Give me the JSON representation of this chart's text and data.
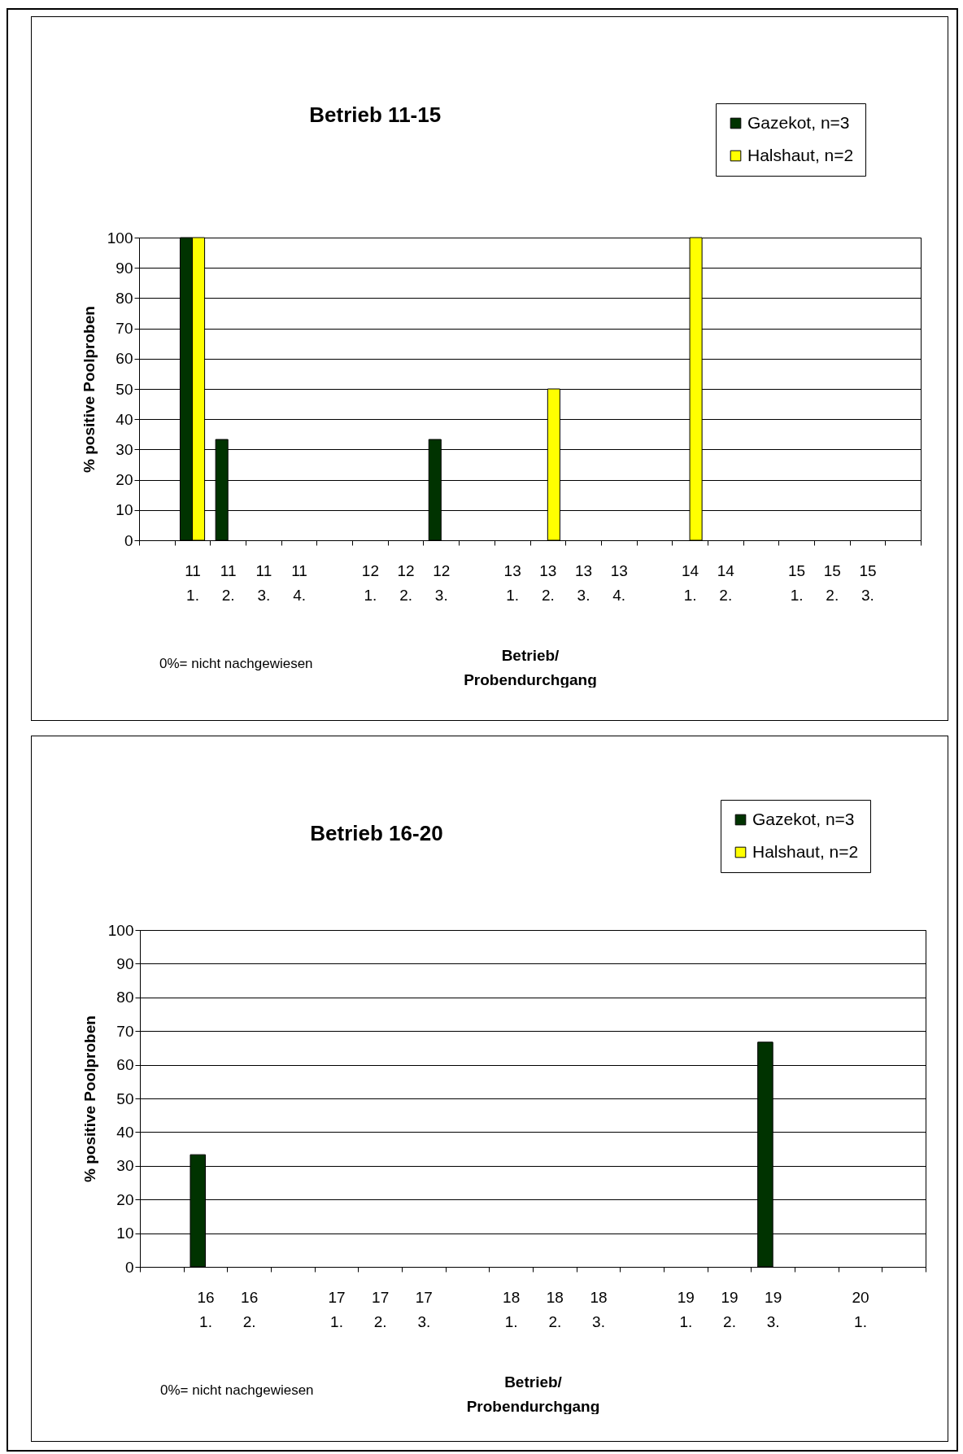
{
  "chart_data": [
    {
      "type": "bar",
      "title": "Betrieb 11-15",
      "xlabel": "Betrieb/\nProbendurchgang",
      "ylabel": "% positive Poolproben",
      "categories": [
        null,
        "11\n1.",
        "11\n2.",
        "11\n3.",
        "11\n4.",
        null,
        "12\n1.",
        "12\n2.",
        "12\n3.",
        null,
        "13\n1.",
        "13\n2.",
        "13\n3.",
        "13\n4.",
        null,
        "14\n1.",
        "14\n2.",
        null,
        "15\n1.",
        "15\n2.",
        "15\n3.",
        null
      ],
      "series": [
        {
          "name": "Gazekot, n=3",
          "color": "#003300",
          "values": [
            null,
            100,
            33.3,
            0,
            0,
            null,
            0,
            0,
            33.3,
            null,
            0,
            0,
            0,
            0,
            null,
            0,
            0,
            null,
            0,
            0,
            0,
            null
          ]
        },
        {
          "name": "Halshaut, n=2",
          "color": "#ffff00",
          "values": [
            null,
            100,
            0,
            0,
            0,
            null,
            0,
            0,
            0,
            null,
            0,
            50,
            0,
            0,
            null,
            100,
            0,
            null,
            0,
            0,
            0,
            null
          ]
        }
      ],
      "ylim": [
        0,
        100
      ],
      "yticks": [
        0,
        10,
        20,
        30,
        40,
        50,
        60,
        70,
        80,
        90,
        100
      ],
      "grid": "y",
      "legend": "top right",
      "annotations": [
        "0%= nicht nachgewiesen"
      ]
    },
    {
      "type": "bar",
      "title": "Betrieb 16-20",
      "xlabel": "Betrieb/\nProbendurchgang",
      "ylabel": "% positive Poolproben",
      "categories": [
        null,
        "16\n1.",
        "16\n2.",
        null,
        "17\n1.",
        "17\n2.",
        "17\n3.",
        null,
        "18\n1.",
        "18\n2.",
        "18\n3.",
        null,
        "19\n1.",
        "19\n2.",
        "19\n3.",
        null,
        "20\n1.",
        null
      ],
      "series": [
        {
          "name": "Gazekot, n=3",
          "color": "#003300",
          "values": [
            null,
            33.3,
            0,
            null,
            0,
            0,
            0,
            null,
            0,
            0,
            0,
            null,
            0,
            0,
            66.7,
            null,
            0,
            null
          ]
        },
        {
          "name": "Halshaut, n=2",
          "color": "#ffff00",
          "values": [
            null,
            0,
            0,
            null,
            0,
            0,
            0,
            null,
            0,
            0,
            0,
            null,
            0,
            0,
            0,
            null,
            0,
            null
          ]
        }
      ],
      "ylim": [
        0,
        100
      ],
      "yticks": [
        0,
        10,
        20,
        30,
        40,
        50,
        60,
        70,
        80,
        90,
        100
      ],
      "grid": "y",
      "legend": "top right",
      "annotations": [
        "0%= nicht nachgewiesen"
      ]
    }
  ]
}
